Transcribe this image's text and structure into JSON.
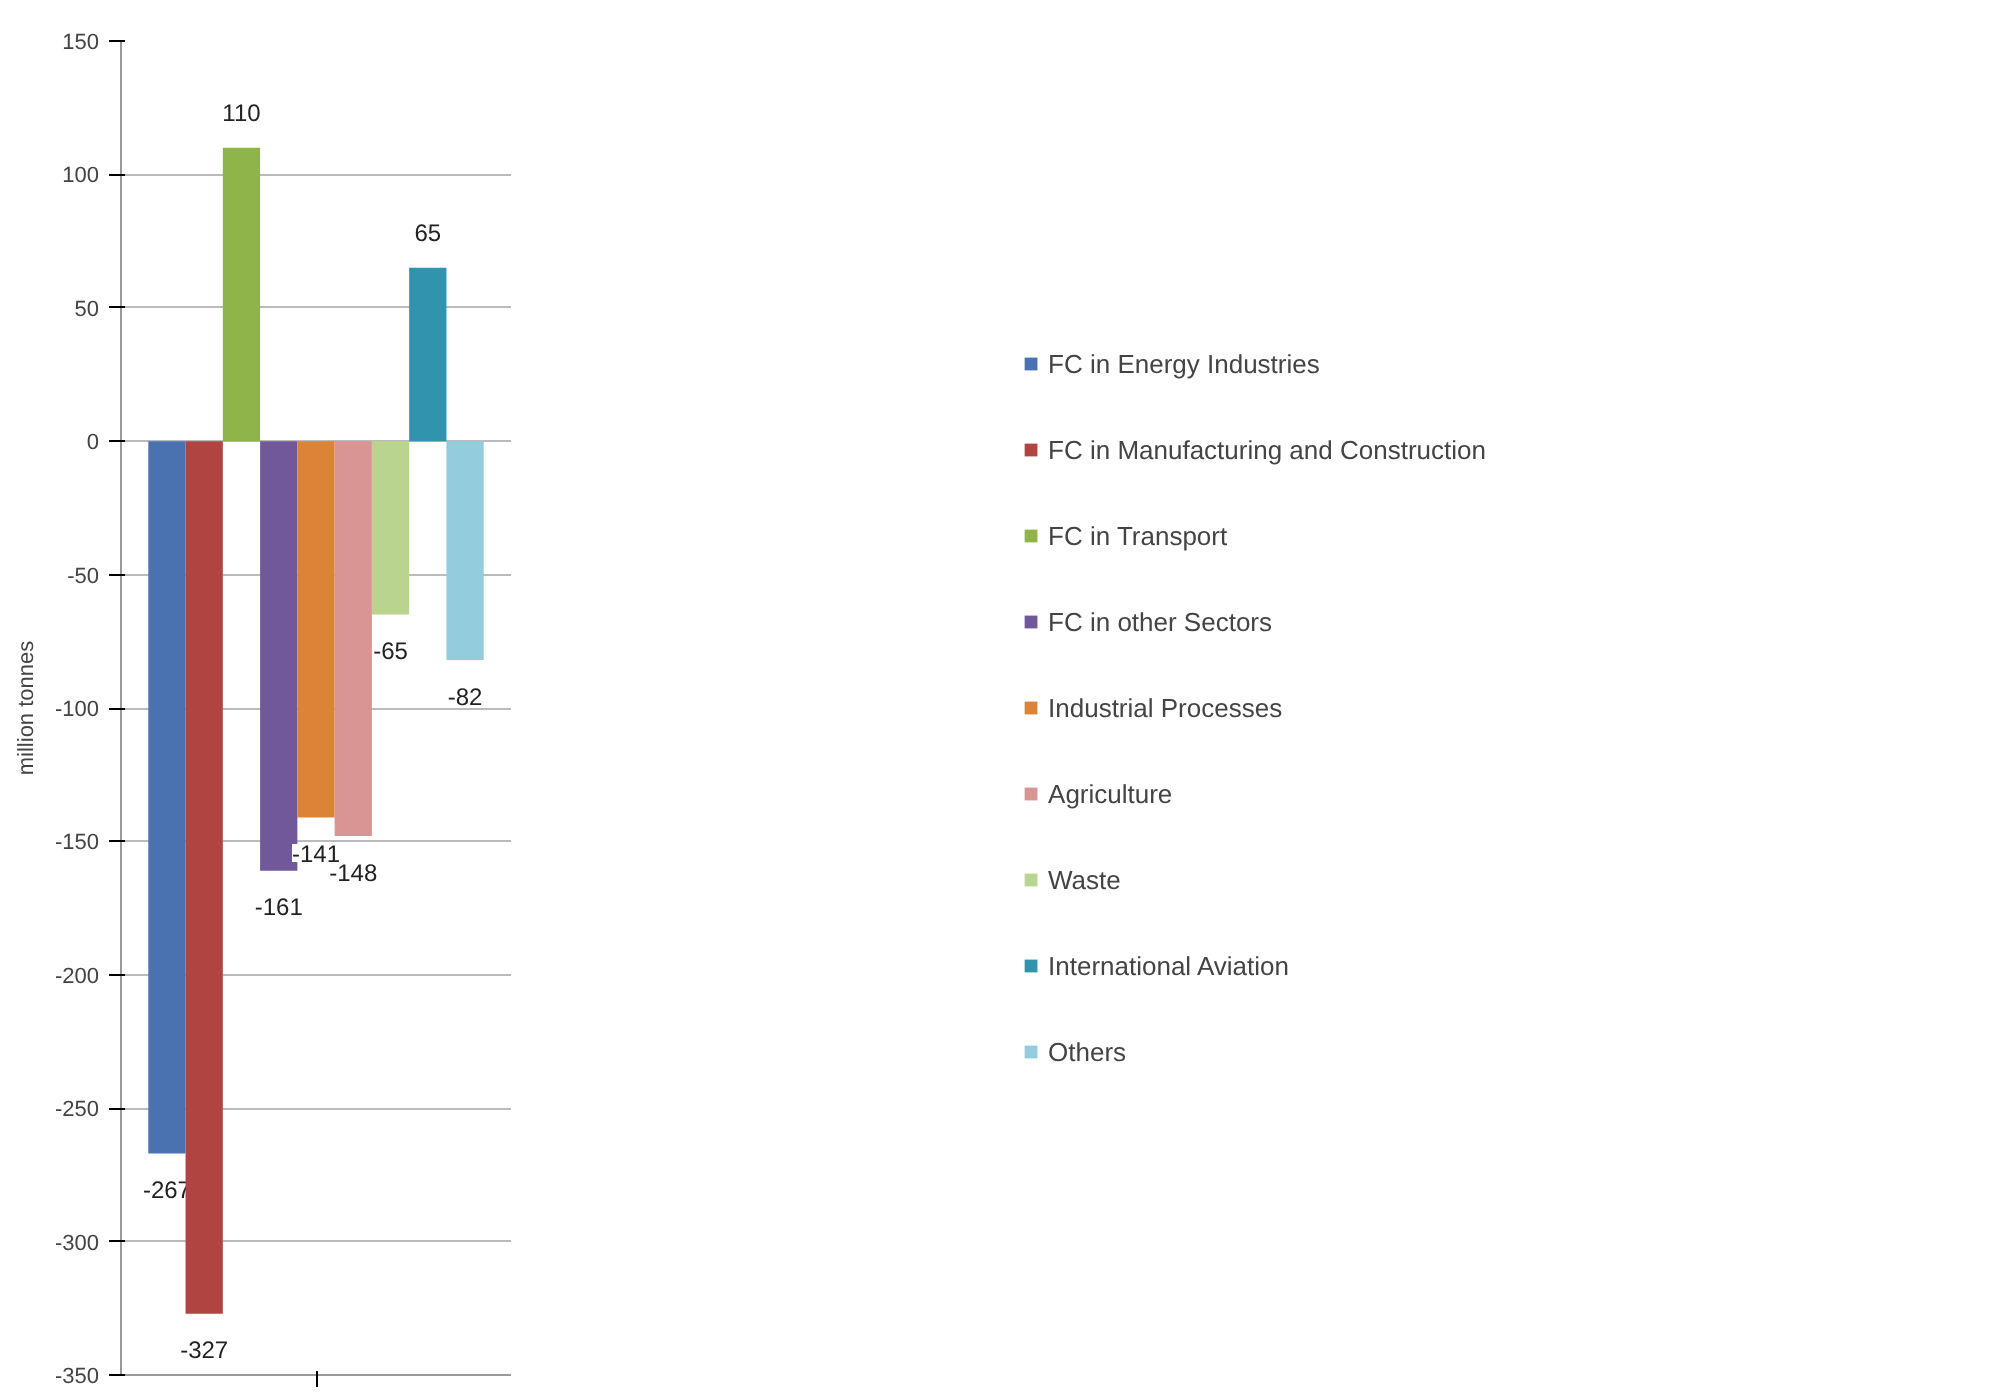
{
  "chart_data": {
    "type": "bar",
    "ylabel": "million tonnes",
    "categories": [
      null
    ],
    "series": [
      {
        "name": "FC in Energy Industries",
        "color": "#4a72b0",
        "values": [
          -267
        ]
      },
      {
        "name": "FC in Manufacturing and Construction",
        "color": "#b04440",
        "values": [
          -327
        ]
      },
      {
        "name": "FC in Transport",
        "color": "#8eb44a",
        "values": [
          110
        ]
      },
      {
        "name": "FC in other Sectors",
        "color": "#71589a",
        "values": [
          -161
        ]
      },
      {
        "name": "Industrial Processes",
        "color": "#db8437",
        "values": [
          -141
        ]
      },
      {
        "name": "Agriculture",
        "color": "#d99593",
        "values": [
          -148
        ]
      },
      {
        "name": "Waste",
        "color": "#b8d48e",
        "values": [
          -65
        ]
      },
      {
        "name": "International Aviation",
        "color": "#3193ae",
        "values": [
          65
        ]
      },
      {
        "name": "Others",
        "color": "#93cddd",
        "values": [
          -82
        ]
      }
    ],
    "ylim": [
      -350,
      150
    ],
    "yticks": [
      -350,
      -300,
      -250,
      -200,
      -150,
      -100,
      -50,
      0,
      50,
      100,
      150
    ],
    "grid": "y",
    "legend": "right",
    "data_labels": true
  }
}
